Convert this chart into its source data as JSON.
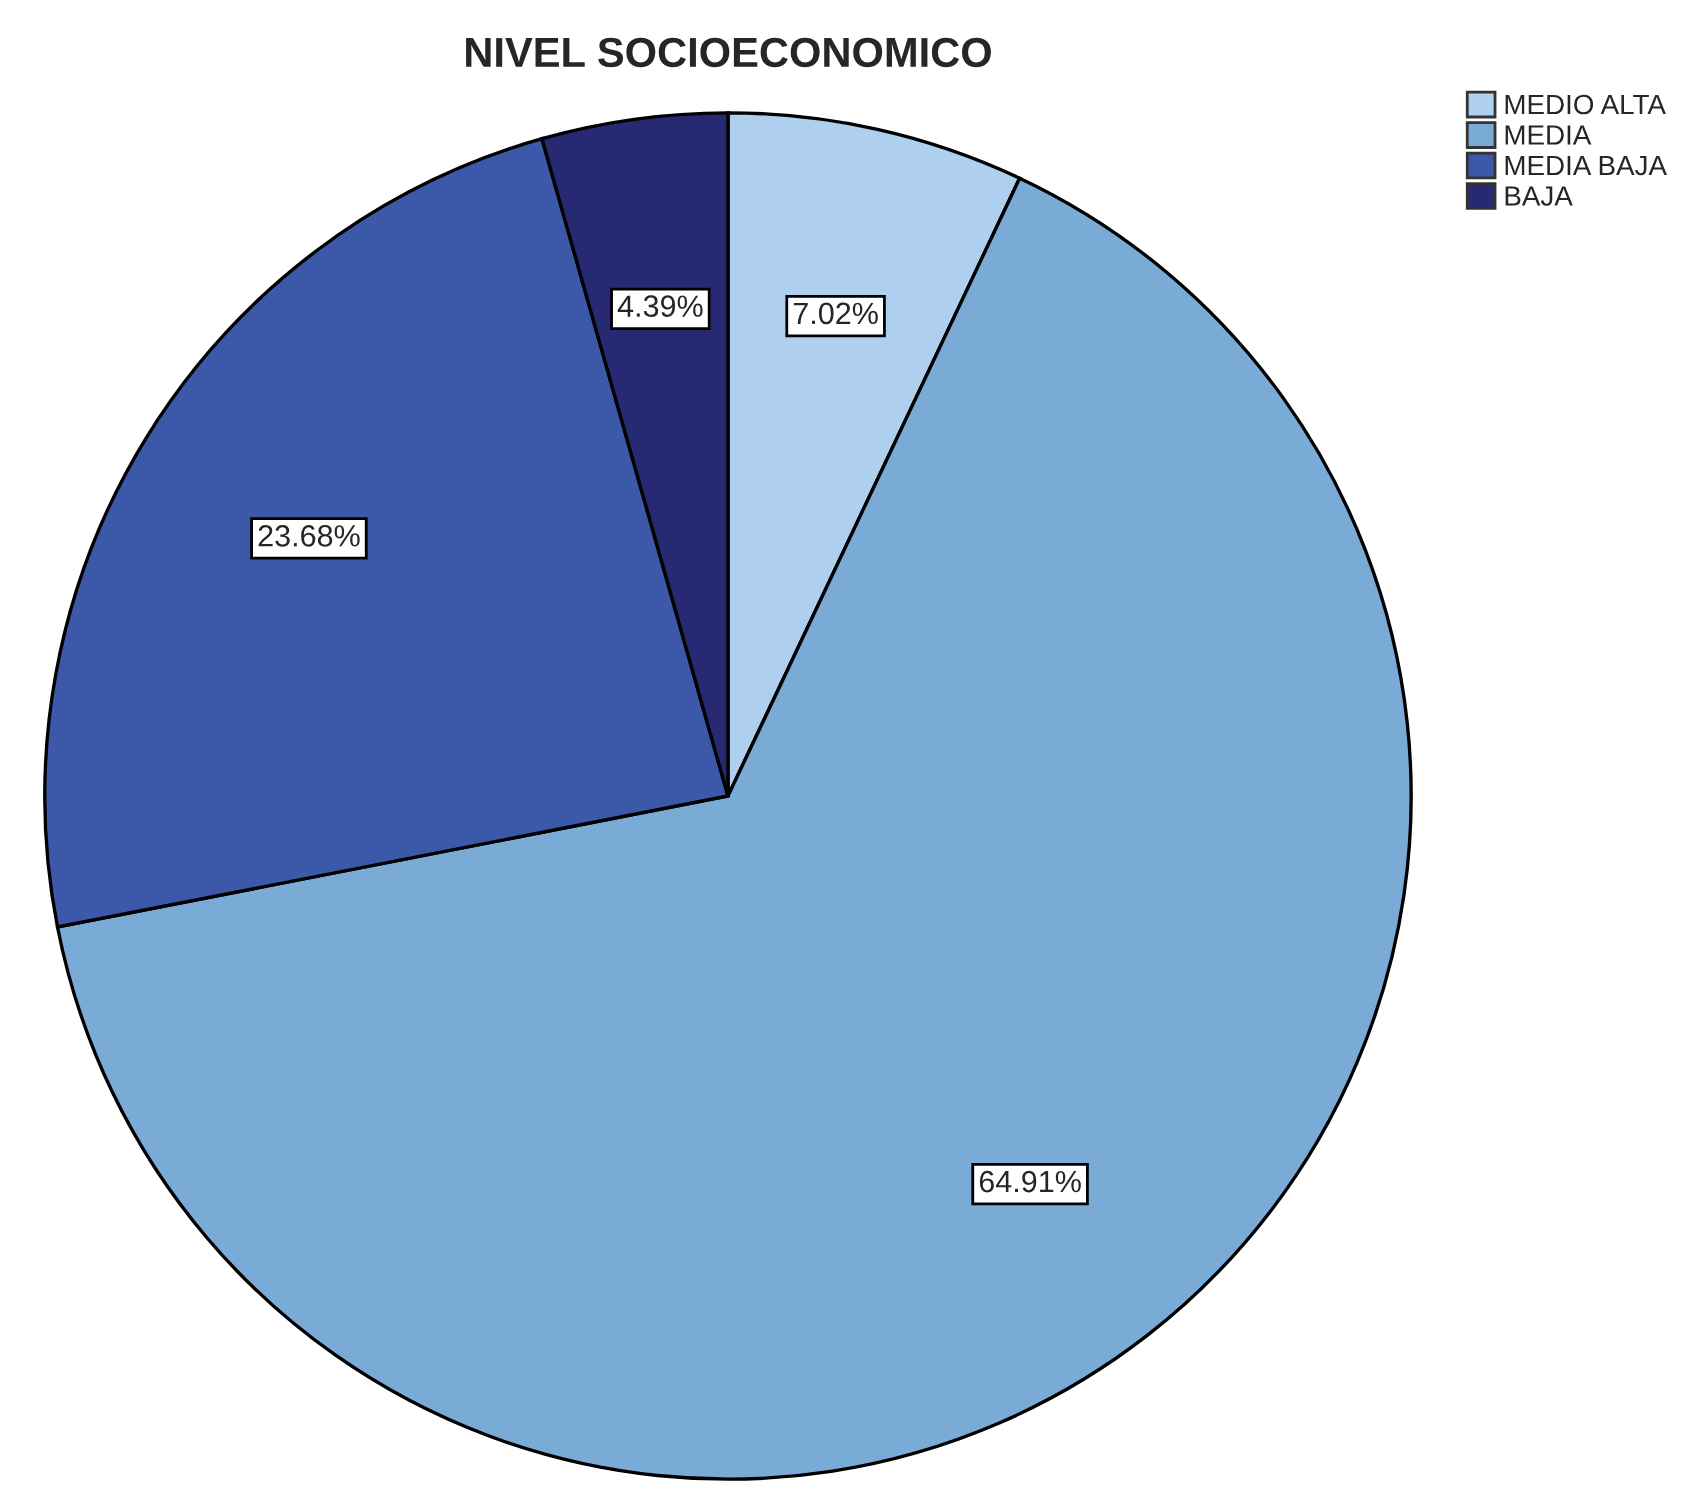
{
  "chart_data": {
    "type": "pie",
    "title": "NIVEL SOCIOECONOMICO",
    "categories": [
      "MEDIO ALTA",
      "MEDIA",
      "MEDIA BAJA",
      "BAJA"
    ],
    "values": [
      7.02,
      64.91,
      23.68,
      4.39
    ],
    "colors": [
      "#aed0ee",
      "#7aaad6",
      "#3c58a8",
      "#272a72"
    ],
    "value_labels": [
      "7.02%",
      "64.91%",
      "23.68%",
      "4.39%"
    ],
    "legend": "top right"
  }
}
